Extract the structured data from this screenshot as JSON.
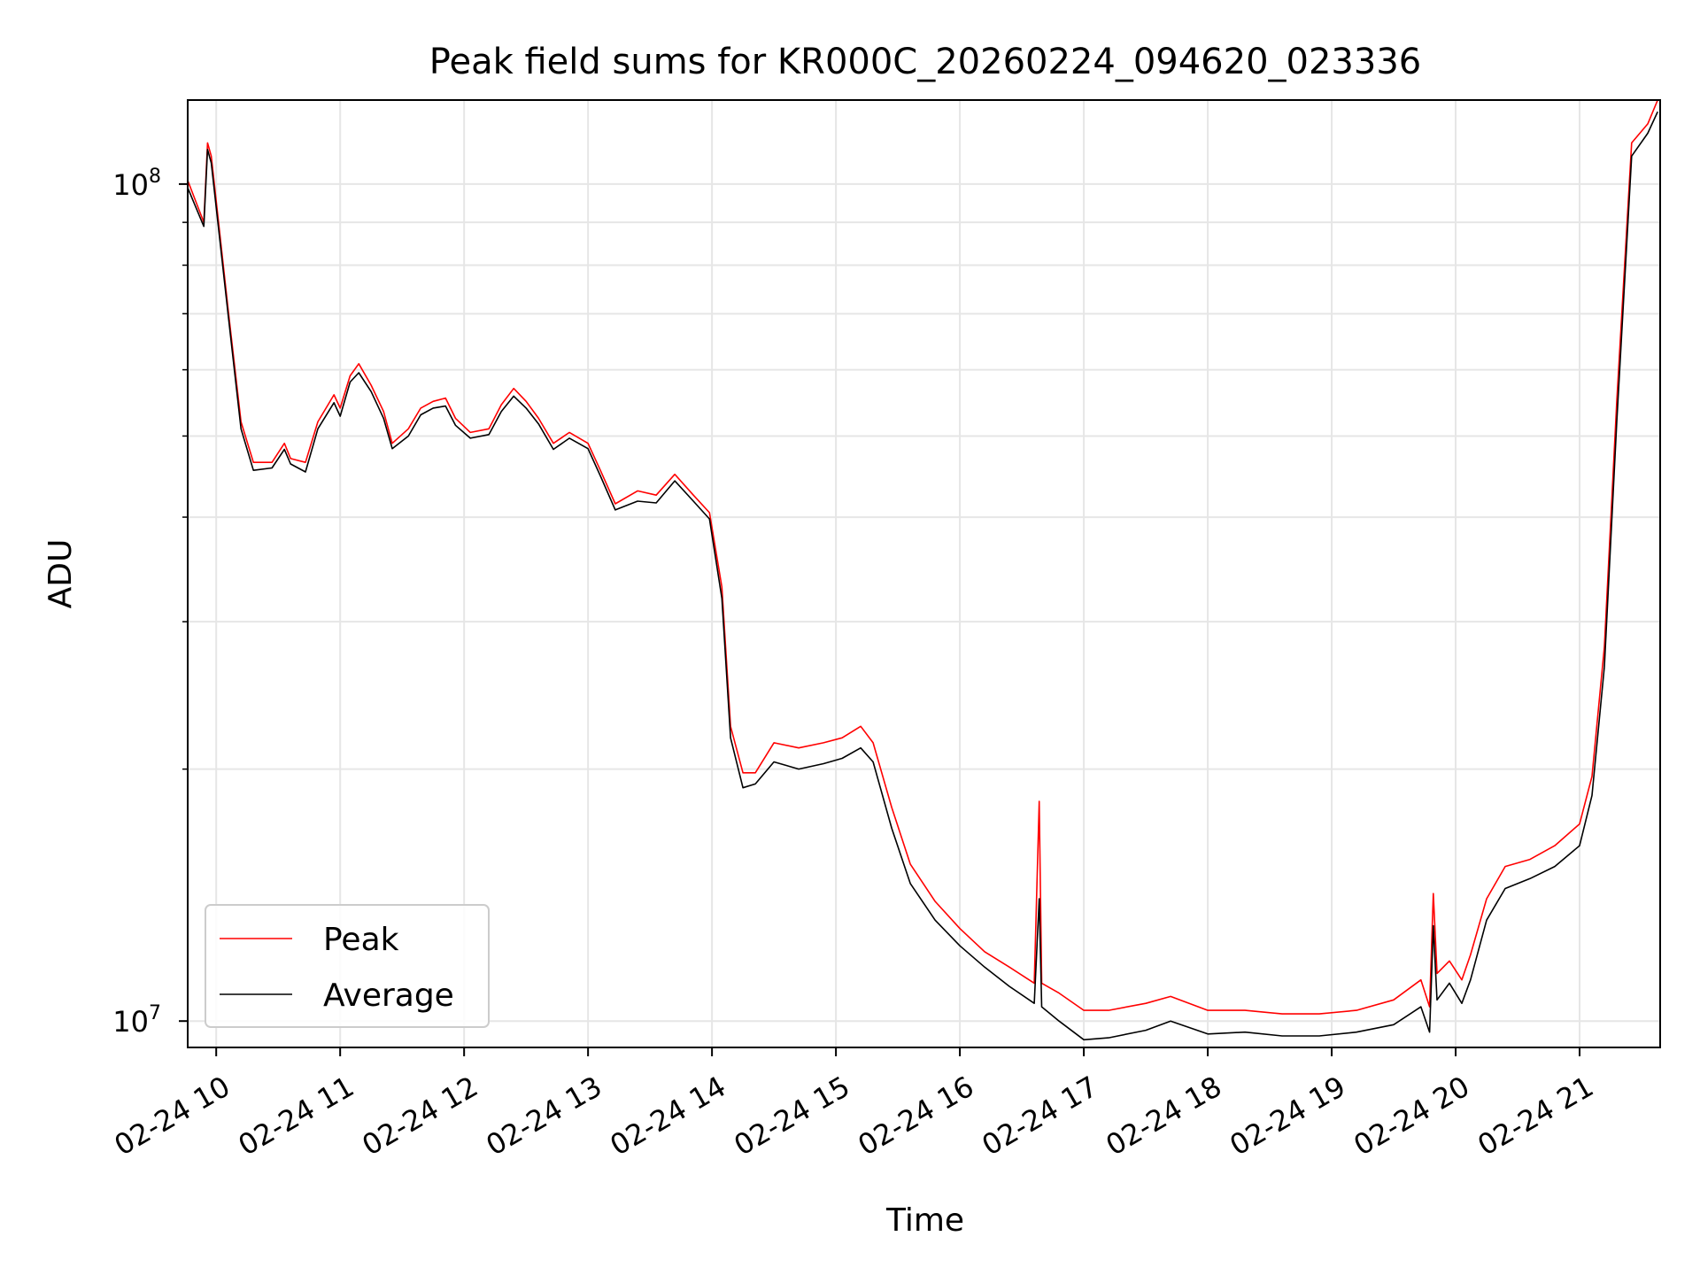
{
  "chart_data": {
    "type": "line",
    "title": "Peak field sums for KR000C_20260224_094620_023336",
    "xlabel": "Time",
    "ylabel": "ADU",
    "yscale": "log",
    "xlim_hours": [
      9.77,
      21.65
    ],
    "ylim": [
      9300000,
      126000000
    ],
    "grid": true,
    "legend_position": "lower-left",
    "x_ticks": [
      {
        "hour": 10,
        "label": "02-24 10"
      },
      {
        "hour": 11,
        "label": "02-24 11"
      },
      {
        "hour": 12,
        "label": "02-24 12"
      },
      {
        "hour": 13,
        "label": "02-24 13"
      },
      {
        "hour": 14,
        "label": "02-24 14"
      },
      {
        "hour": 15,
        "label": "02-24 15"
      },
      {
        "hour": 16,
        "label": "02-24 16"
      },
      {
        "hour": 17,
        "label": "02-24 17"
      },
      {
        "hour": 18,
        "label": "02-24 18"
      },
      {
        "hour": 19,
        "label": "02-24 19"
      },
      {
        "hour": 20,
        "label": "02-24 20"
      },
      {
        "hour": 21,
        "label": "02-24 21"
      }
    ],
    "y_ticks": [
      {
        "value": 10000000,
        "base": "10",
        "exp": "7"
      },
      {
        "value": 100000000,
        "base": "10",
        "exp": "8"
      }
    ],
    "series": [
      {
        "name": "Peak",
        "color": "#ff0000",
        "points": [
          [
            9.77,
            101000000
          ],
          [
            9.9,
            90000000
          ],
          [
            9.93,
            112000000
          ],
          [
            9.96,
            108000000
          ],
          [
            10.1,
            70000000
          ],
          [
            10.2,
            52000000
          ],
          [
            10.3,
            46500000
          ],
          [
            10.45,
            46500000
          ],
          [
            10.55,
            49000000
          ],
          [
            10.6,
            47000000
          ],
          [
            10.72,
            46500000
          ],
          [
            10.82,
            52000000
          ],
          [
            10.95,
            56000000
          ],
          [
            11.0,
            54000000
          ],
          [
            11.08,
            59000000
          ],
          [
            11.15,
            61000000
          ],
          [
            11.25,
            57500000
          ],
          [
            11.35,
            53500000
          ],
          [
            11.42,
            49000000
          ],
          [
            11.55,
            51000000
          ],
          [
            11.65,
            54000000
          ],
          [
            11.75,
            55000000
          ],
          [
            11.85,
            55500000
          ],
          [
            11.93,
            52500000
          ],
          [
            12.05,
            50500000
          ],
          [
            12.2,
            51000000
          ],
          [
            12.3,
            54500000
          ],
          [
            12.4,
            57000000
          ],
          [
            12.5,
            55000000
          ],
          [
            12.6,
            52500000
          ],
          [
            12.72,
            49000000
          ],
          [
            12.85,
            50500000
          ],
          [
            13.0,
            49000000
          ],
          [
            13.1,
            45500000
          ],
          [
            13.22,
            41500000
          ],
          [
            13.4,
            43000000
          ],
          [
            13.55,
            42500000
          ],
          [
            13.7,
            45000000
          ],
          [
            13.85,
            42500000
          ],
          [
            13.98,
            40500000
          ],
          [
            14.08,
            33000000
          ],
          [
            14.15,
            22500000
          ],
          [
            14.25,
            19800000
          ],
          [
            14.35,
            19800000
          ],
          [
            14.5,
            21500000
          ],
          [
            14.7,
            21200000
          ],
          [
            14.9,
            21500000
          ],
          [
            15.05,
            21800000
          ],
          [
            15.2,
            22500000
          ],
          [
            15.3,
            21500000
          ],
          [
            15.45,
            18000000
          ],
          [
            15.6,
            15400000
          ],
          [
            15.8,
            13900000
          ],
          [
            16.0,
            12900000
          ],
          [
            16.2,
            12100000
          ],
          [
            16.4,
            11600000
          ],
          [
            16.6,
            11100000
          ],
          [
            16.64,
            18300000
          ],
          [
            16.66,
            11100000
          ],
          [
            16.8,
            10800000
          ],
          [
            17.0,
            10300000
          ],
          [
            17.2,
            10300000
          ],
          [
            17.5,
            10500000
          ],
          [
            17.7,
            10700000
          ],
          [
            18.0,
            10300000
          ],
          [
            18.3,
            10300000
          ],
          [
            18.6,
            10200000
          ],
          [
            18.9,
            10200000
          ],
          [
            19.2,
            10300000
          ],
          [
            19.5,
            10600000
          ],
          [
            19.72,
            11200000
          ],
          [
            19.79,
            10400000
          ],
          [
            19.82,
            14200000
          ],
          [
            19.85,
            11400000
          ],
          [
            19.95,
            11800000
          ],
          [
            20.05,
            11200000
          ],
          [
            20.12,
            12000000
          ],
          [
            20.25,
            14000000
          ],
          [
            20.4,
            15300000
          ],
          [
            20.6,
            15600000
          ],
          [
            20.8,
            16200000
          ],
          [
            21.0,
            17200000
          ],
          [
            21.1,
            19600000
          ],
          [
            21.2,
            28000000
          ],
          [
            21.3,
            55000000
          ],
          [
            21.42,
            112000000
          ],
          [
            21.55,
            118000000
          ],
          [
            21.63,
            126000000
          ]
        ]
      },
      {
        "name": "Average",
        "color": "#000000",
        "points": [
          [
            9.77,
            99000000
          ],
          [
            9.9,
            89000000
          ],
          [
            9.93,
            110000000
          ],
          [
            9.96,
            106000000
          ],
          [
            10.1,
            69000000
          ],
          [
            10.2,
            51000000
          ],
          [
            10.3,
            45500000
          ],
          [
            10.45,
            45800000
          ],
          [
            10.55,
            48200000
          ],
          [
            10.6,
            46300000
          ],
          [
            10.72,
            45300000
          ],
          [
            10.82,
            51000000
          ],
          [
            10.95,
            54800000
          ],
          [
            11.0,
            52800000
          ],
          [
            11.08,
            58000000
          ],
          [
            11.15,
            59500000
          ],
          [
            11.25,
            56500000
          ],
          [
            11.35,
            52500000
          ],
          [
            11.42,
            48300000
          ],
          [
            11.55,
            50000000
          ],
          [
            11.65,
            53000000
          ],
          [
            11.75,
            54000000
          ],
          [
            11.85,
            54300000
          ],
          [
            11.93,
            51500000
          ],
          [
            12.05,
            49700000
          ],
          [
            12.2,
            50200000
          ],
          [
            12.3,
            53500000
          ],
          [
            12.4,
            55800000
          ],
          [
            12.5,
            54000000
          ],
          [
            12.6,
            51700000
          ],
          [
            12.72,
            48200000
          ],
          [
            12.85,
            49700000
          ],
          [
            13.0,
            48300000
          ],
          [
            13.1,
            44800000
          ],
          [
            13.22,
            40800000
          ],
          [
            13.4,
            41800000
          ],
          [
            13.55,
            41600000
          ],
          [
            13.7,
            44200000
          ],
          [
            13.85,
            41800000
          ],
          [
            13.98,
            39800000
          ],
          [
            14.08,
            32000000
          ],
          [
            14.15,
            21800000
          ],
          [
            14.25,
            19000000
          ],
          [
            14.35,
            19200000
          ],
          [
            14.5,
            20400000
          ],
          [
            14.7,
            20000000
          ],
          [
            14.9,
            20300000
          ],
          [
            15.05,
            20600000
          ],
          [
            15.2,
            21200000
          ],
          [
            15.3,
            20400000
          ],
          [
            15.45,
            17000000
          ],
          [
            15.6,
            14600000
          ],
          [
            15.8,
            13200000
          ],
          [
            16.0,
            12300000
          ],
          [
            16.2,
            11600000
          ],
          [
            16.4,
            11000000
          ],
          [
            16.6,
            10500000
          ],
          [
            16.64,
            14000000
          ],
          [
            16.66,
            10400000
          ],
          [
            16.8,
            10000000
          ],
          [
            17.0,
            9500000
          ],
          [
            17.2,
            9550000
          ],
          [
            17.5,
            9750000
          ],
          [
            17.7,
            10000000
          ],
          [
            18.0,
            9650000
          ],
          [
            18.3,
            9700000
          ],
          [
            18.6,
            9600000
          ],
          [
            18.9,
            9600000
          ],
          [
            19.2,
            9700000
          ],
          [
            19.5,
            9900000
          ],
          [
            19.72,
            10400000
          ],
          [
            19.79,
            9700000
          ],
          [
            19.82,
            13000000
          ],
          [
            19.85,
            10600000
          ],
          [
            19.95,
            11100000
          ],
          [
            20.05,
            10500000
          ],
          [
            20.12,
            11200000
          ],
          [
            20.25,
            13200000
          ],
          [
            20.4,
            14400000
          ],
          [
            20.6,
            14800000
          ],
          [
            20.8,
            15300000
          ],
          [
            21.0,
            16200000
          ],
          [
            21.1,
            18600000
          ],
          [
            21.2,
            26500000
          ],
          [
            21.3,
            52000000
          ],
          [
            21.42,
            108000000
          ],
          [
            21.55,
            115000000
          ],
          [
            21.63,
            122000000
          ]
        ]
      }
    ]
  }
}
